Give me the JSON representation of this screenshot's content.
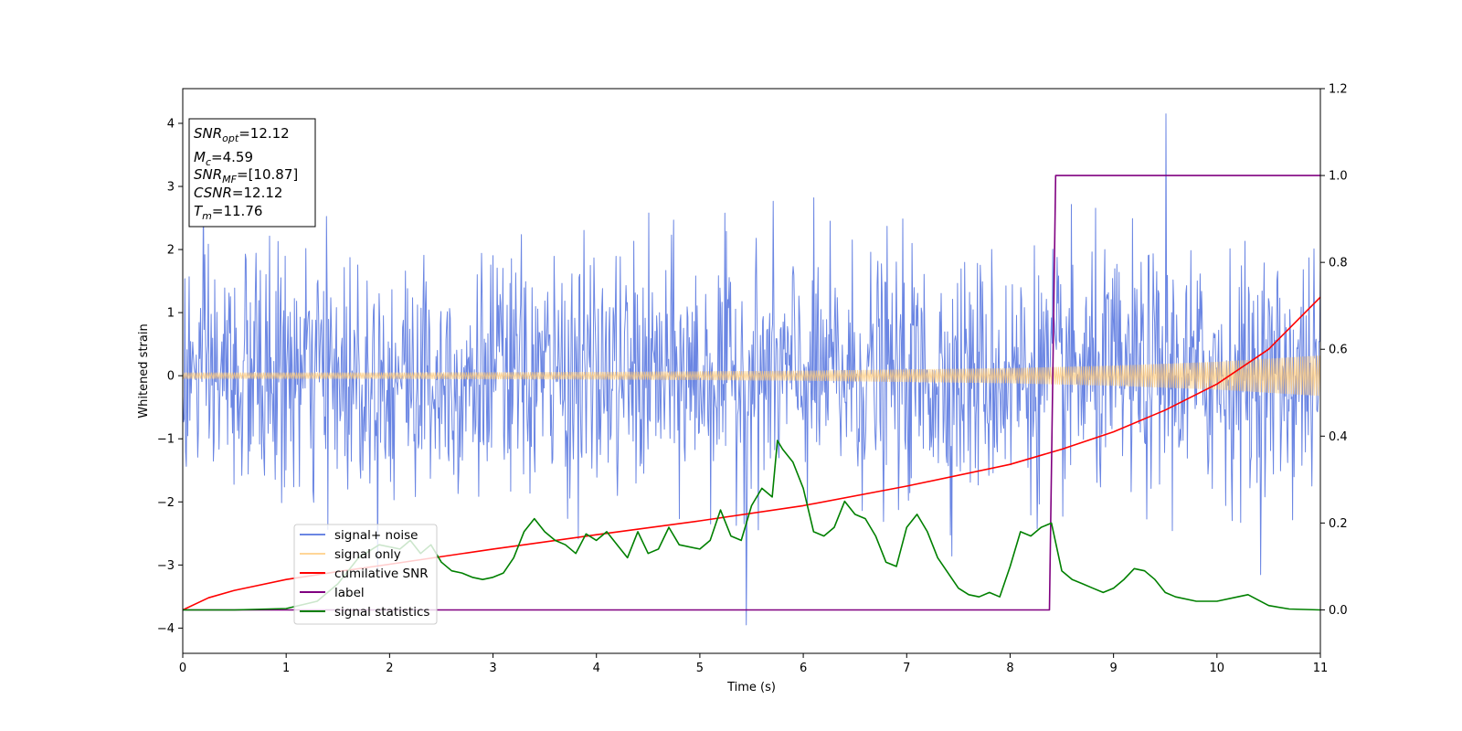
{
  "chart_data": {
    "type": "line",
    "xlabel": "Time (s)",
    "ylabel": "Whitened strain",
    "xlim": [
      0,
      11
    ],
    "ylim_left": [
      -4.4,
      4.55
    ],
    "ylim_right": [
      -0.1,
      1.2
    ],
    "x_ticks": [
      0,
      1,
      2,
      3,
      4,
      5,
      6,
      7,
      8,
      9,
      10,
      11
    ],
    "y_ticks_left": [
      -4,
      -3,
      -2,
      -1,
      0,
      1,
      2,
      3,
      4
    ],
    "y_ticks_right": [
      0.0,
      0.2,
      0.4,
      0.6,
      0.8,
      1.0,
      1.2
    ],
    "grid": false,
    "legend_position": "lower-left",
    "annotation": {
      "lines": [
        {
          "base": "SNR",
          "sub": "opt",
          "rest": "=12.12"
        },
        {
          "base": "M",
          "sub": "c",
          "rest": "=4.59"
        },
        {
          "base": "SNR",
          "sub": "MF",
          "rest": "=[10.87]"
        },
        {
          "base": "CSNR",
          "sub": "",
          "rest": "=12.12"
        },
        {
          "base": "T",
          "sub": "m",
          "rest": "=11.76"
        }
      ]
    },
    "series": [
      {
        "name": "signal+ noise",
        "axis": "left",
        "color": "#6b86e3",
        "style": "noise",
        "sigma": 0.95,
        "peak_max": 4.15,
        "peak_min": -3.95
      },
      {
        "name": "signal only",
        "axis": "left",
        "color": "#ffc874",
        "style": "envelope",
        "x": [
          0,
          2,
          4,
          6,
          8,
          9,
          10,
          11
        ],
        "amplitude": [
          0.05,
          0.05,
          0.06,
          0.08,
          0.12,
          0.16,
          0.22,
          0.32
        ]
      },
      {
        "name": "cumilative SNR",
        "axis": "right",
        "color": "#ff0000",
        "x": [
          0,
          0.25,
          0.5,
          1,
          1.5,
          2,
          3,
          4,
          5,
          6,
          7,
          8,
          8.5,
          9,
          9.5,
          10,
          10.5,
          11
        ],
        "values": [
          0,
          0.028,
          0.045,
          0.07,
          0.088,
          0.105,
          0.14,
          0.173,
          0.205,
          0.24,
          0.285,
          0.335,
          0.37,
          0.41,
          0.46,
          0.52,
          0.6,
          0.72
        ]
      },
      {
        "name": "label",
        "axis": "right",
        "color": "#800080",
        "x": [
          0,
          8.38,
          8.44,
          11
        ],
        "values": [
          0,
          0,
          1,
          1
        ]
      },
      {
        "name": "signal statistics",
        "axis": "right",
        "color": "#008000",
        "x": [
          0,
          0.5,
          1,
          1.3,
          1.5,
          1.7,
          1.9,
          2.1,
          2.2,
          2.3,
          2.4,
          2.5,
          2.6,
          2.7,
          2.8,
          2.9,
          3.0,
          3.1,
          3.2,
          3.3,
          3.4,
          3.5,
          3.6,
          3.7,
          3.8,
          3.9,
          4.0,
          4.1,
          4.2,
          4.3,
          4.4,
          4.5,
          4.6,
          4.7,
          4.8,
          5.0,
          5.1,
          5.2,
          5.3,
          5.4,
          5.5,
          5.6,
          5.7,
          5.75,
          5.8,
          5.9,
          6.0,
          6.1,
          6.2,
          6.3,
          6.4,
          6.5,
          6.6,
          6.7,
          6.8,
          6.9,
          7.0,
          7.1,
          7.2,
          7.3,
          7.5,
          7.6,
          7.7,
          7.8,
          7.9,
          8.0,
          8.1,
          8.2,
          8.3,
          8.4,
          8.5,
          8.6,
          8.7,
          8.8,
          8.9,
          9.0,
          9.1,
          9.2,
          9.3,
          9.4,
          9.5,
          9.6,
          9.8,
          10.0,
          10.2,
          10.3,
          10.5,
          10.7,
          11
        ],
        "values": [
          0,
          0,
          0.003,
          0.02,
          0.06,
          0.12,
          0.15,
          0.14,
          0.16,
          0.13,
          0.15,
          0.11,
          0.09,
          0.085,
          0.075,
          0.07,
          0.075,
          0.085,
          0.12,
          0.18,
          0.21,
          0.18,
          0.16,
          0.15,
          0.13,
          0.175,
          0.16,
          0.18,
          0.15,
          0.12,
          0.18,
          0.13,
          0.14,
          0.19,
          0.15,
          0.14,
          0.16,
          0.23,
          0.17,
          0.16,
          0.24,
          0.28,
          0.26,
          0.39,
          0.37,
          0.34,
          0.28,
          0.18,
          0.17,
          0.19,
          0.25,
          0.22,
          0.21,
          0.17,
          0.11,
          0.1,
          0.19,
          0.22,
          0.18,
          0.12,
          0.05,
          0.035,
          0.03,
          0.04,
          0.03,
          0.1,
          0.18,
          0.17,
          0.19,
          0.2,
          0.09,
          0.07,
          0.06,
          0.05,
          0.04,
          0.05,
          0.07,
          0.095,
          0.09,
          0.07,
          0.04,
          0.03,
          0.02,
          0.02,
          0.03,
          0.035,
          0.01,
          0.002,
          0
        ]
      }
    ]
  }
}
